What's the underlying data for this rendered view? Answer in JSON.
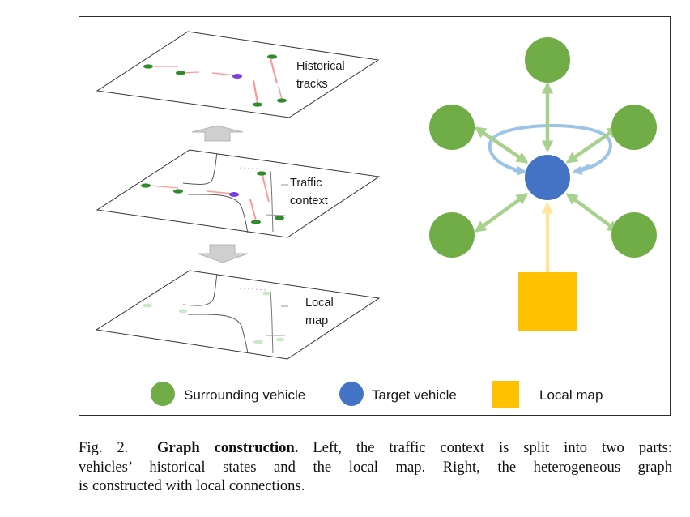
{
  "planes": {
    "top_label_line1": "Historical",
    "top_label_line2": "tracks",
    "middle_label_line1": "Traffic",
    "middle_label_line2": "context",
    "bottom_label_line1": "Local",
    "bottom_label_line2": "map"
  },
  "legend": {
    "surrounding": "Surrounding vehicle",
    "target": "Target vehicle",
    "map": "Local map"
  },
  "caption": {
    "fig_number": "Fig. 2.",
    "title": "Graph construction.",
    "line1_rest": "Left, the traffic context is split into two parts:",
    "line2": "vehicles’ historical states and the local map. Right, the heterogeneous graph",
    "line3": "is constructed with local connections."
  },
  "colors": {
    "surrounding_vehicle": "#70ad47",
    "target_vehicle": "#4472c4",
    "local_map": "#ffc000",
    "green_edge": "#a9d18e",
    "blue_edge": "#9dc3e6",
    "yellow_edge": "#ffe699",
    "track": "#ff9999"
  }
}
